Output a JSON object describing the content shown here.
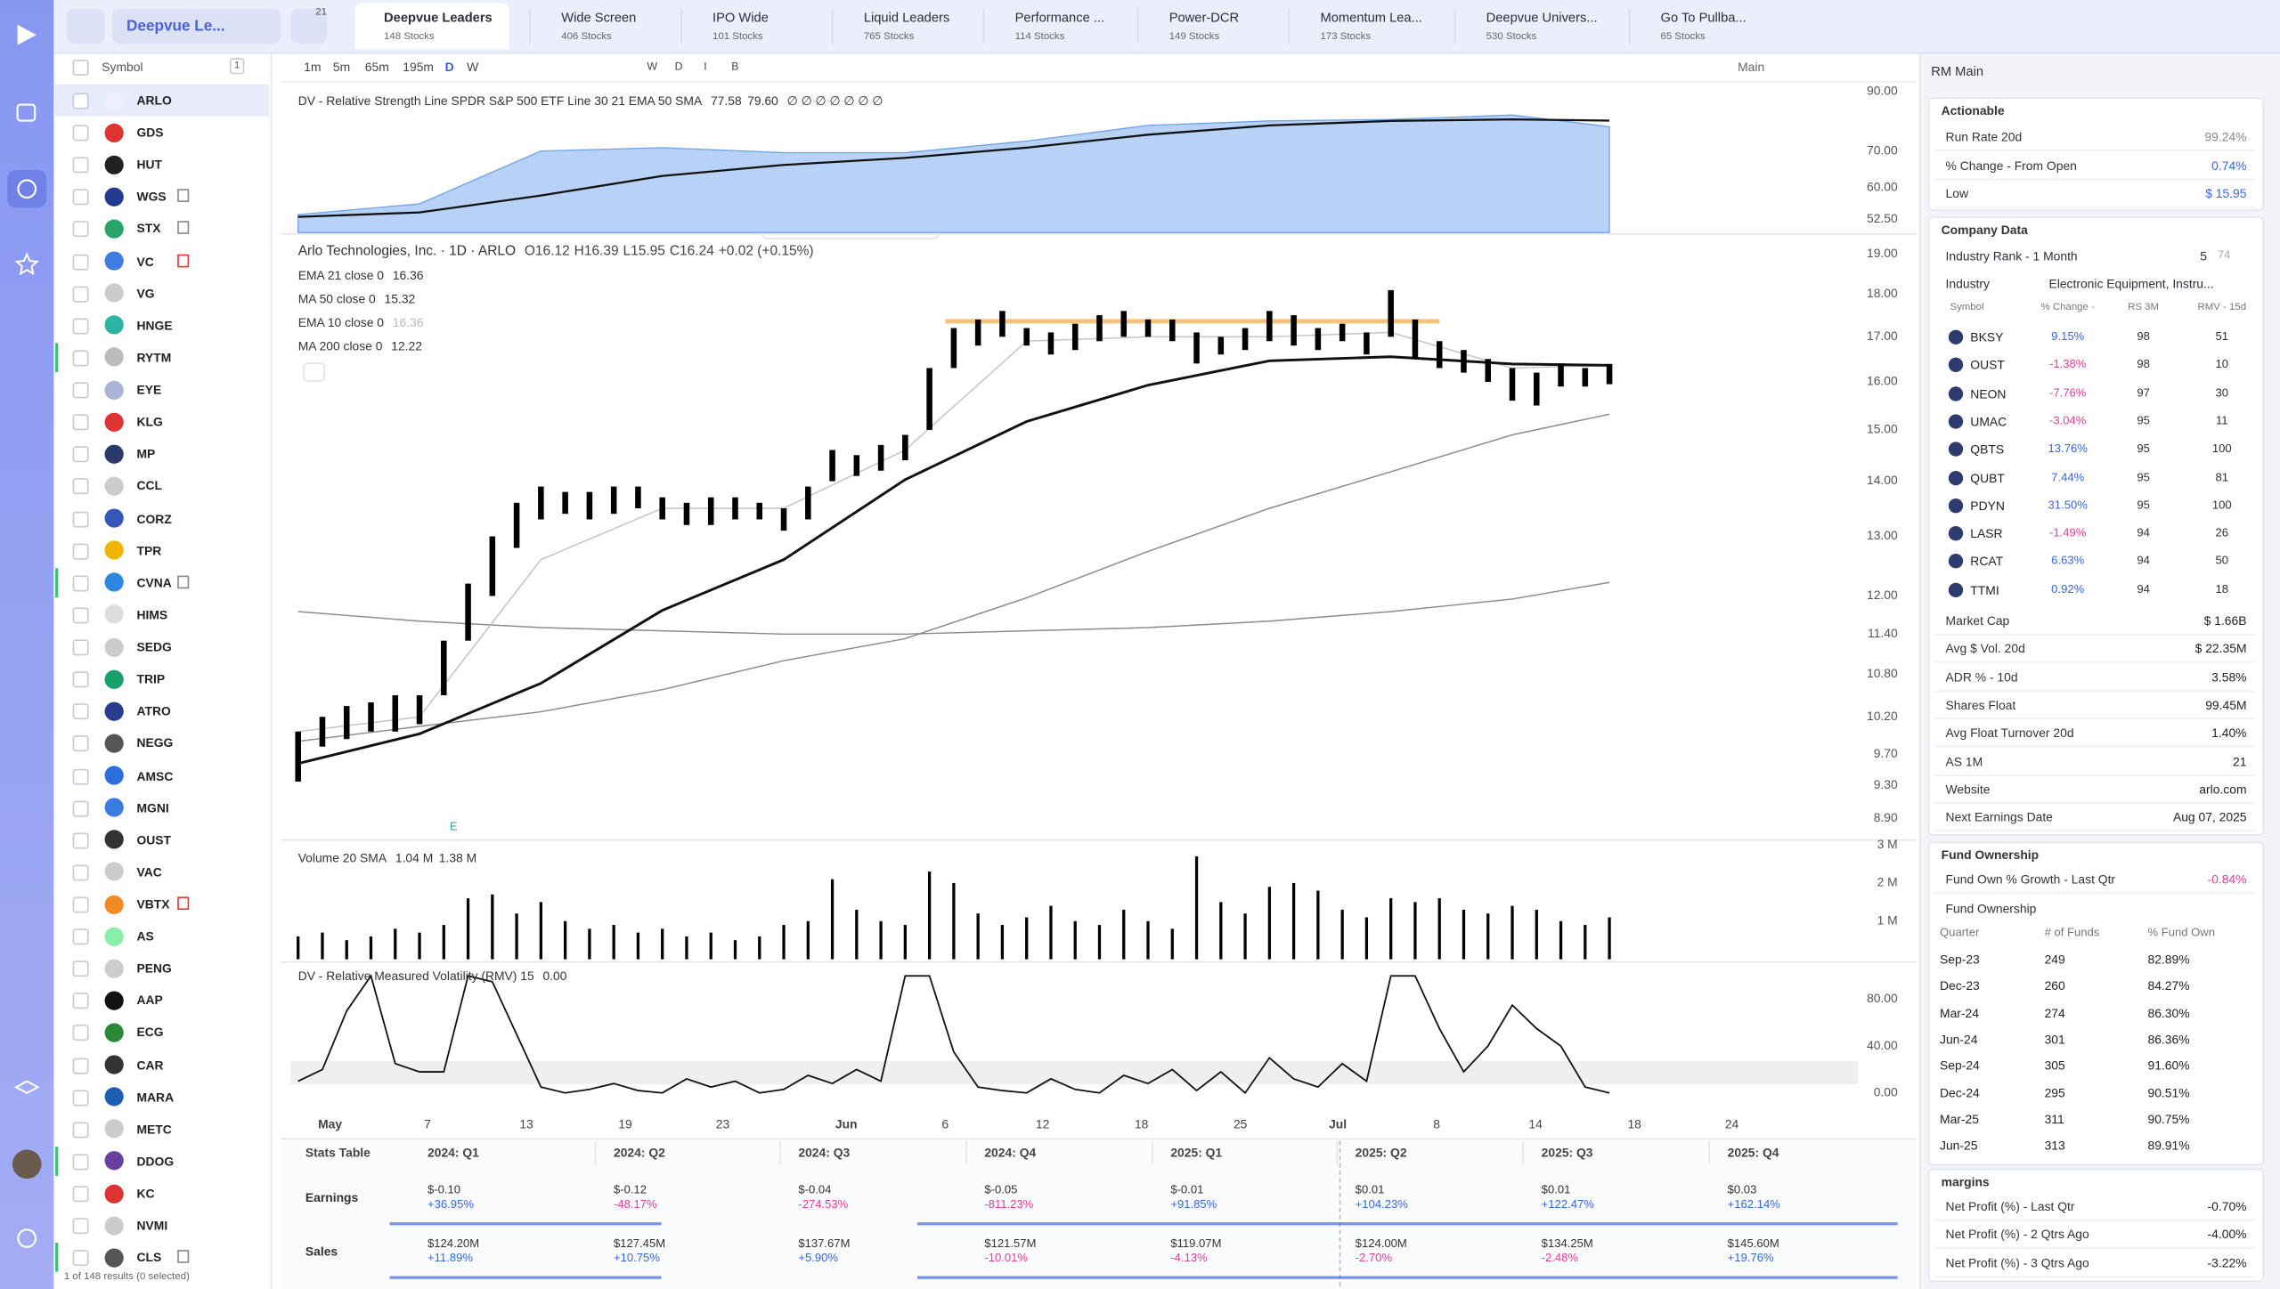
{
  "topbar": {
    "list_name": "Deepvue Le...",
    "filter_count": "21",
    "tabs": [
      {
        "name": "Deepvue Leaders",
        "count": "148 Stocks"
      },
      {
        "name": "Wide Screen",
        "count": "406 Stocks"
      },
      {
        "name": "IPO Wide",
        "count": "101 Stocks"
      },
      {
        "name": "Liquid Leaders",
        "count": "765 Stocks"
      },
      {
        "name": "Performance ...",
        "count": "114 Stocks"
      },
      {
        "name": "Power-DCR",
        "count": "149 Stocks"
      },
      {
        "name": "Momentum Lea...",
        "count": "173 Stocks"
      },
      {
        "name": "Deepvue Univers...",
        "count": "530 Stocks"
      },
      {
        "name": "Go To Pullba...",
        "count": "65 Stocks"
      }
    ]
  },
  "watchlist": {
    "header": "Symbol",
    "selected_count": "1",
    "symbols": [
      "ARLO",
      "GDS",
      "HUT",
      "WGS",
      "STX",
      "VC",
      "VG",
      "HNGE",
      "RYTM",
      "EYE",
      "KLG",
      "MP",
      "CCL",
      "CORZ",
      "TPR",
      "CVNA",
      "HIMS",
      "SEDG",
      "TRIP",
      "ATRO",
      "NEGG",
      "AMSC",
      "MGNI",
      "OUST",
      "VAC",
      "VBTX",
      "AS",
      "PENG",
      "AAP",
      "ECG",
      "CAR",
      "MARA",
      "METC",
      "DDOG",
      "KC",
      "NVMI",
      "CLS"
    ],
    "footer": "1 of 148 results (0 selected)"
  },
  "toolbar": {
    "intervals": [
      "1m",
      "5m",
      "65m",
      "195m",
      "D",
      "W"
    ],
    "drawing_modes": [
      "W",
      "D",
      "I",
      "B"
    ],
    "layout": "Main"
  },
  "chart": {
    "rs": {
      "title": "DV - Relative Strength Line SPDR S&P 500 ETF Line 30 21 EMA 50 SMA",
      "values_shown": [
        "77.58",
        "79.60"
      ],
      "flags": "∅ ∅ ∅ ∅ ∅ ∅ ∅",
      "axis_labels": [
        "90.00",
        "70.00",
        "60.00",
        "52.50"
      ],
      "ylim": [
        49.6,
        92.8
      ],
      "log_scale": true,
      "line_x": [
        0,
        5,
        10,
        15,
        20,
        25,
        30,
        35,
        40,
        45,
        50,
        54
      ],
      "series": [
        {
          "color": "#b7d2f6",
          "values": [
            53.5,
            56,
            70,
            71,
            69.5,
            69.5,
            73,
            78,
            79.5,
            80,
            81.5,
            77.58
          ]
        },
        {
          "color": "#111111",
          "values": [
            53,
            54,
            58,
            63,
            66,
            68,
            71,
            75,
            78,
            79.5,
            80,
            79.6
          ]
        }
      ]
    },
    "price": {
      "name": "Arlo Technologies, Inc. · 1D · ARLO",
      "ohlc": [
        "O16.12",
        "H16.39",
        "L15.95",
        "C16.24"
      ],
      "change": "+0.02 (+0.15%)",
      "axis_labels": [
        "19.00",
        "18.00",
        "17.00",
        "16.00",
        "15.00",
        "14.00",
        "13.00",
        "12.00",
        "11.40",
        "10.80",
        "10.20",
        "9.70",
        "9.30",
        "8.90"
      ],
      "ylim": [
        8.66,
        19.48
      ],
      "log_scale": true,
      "high": [
        10.0,
        10.2,
        10.35,
        10.4,
        10.5,
        10.5,
        11.3,
        12.2,
        13.0,
        13.6,
        13.9,
        13.8,
        13.8,
        13.9,
        13.9,
        13.7,
        13.6,
        13.7,
        13.7,
        13.6,
        13.5,
        13.9,
        14.6,
        14.5,
        14.7,
        14.9,
        16.3,
        17.2,
        17.4,
        17.6,
        17.2,
        17.1,
        17.3,
        17.5,
        17.6,
        17.4,
        17.4,
        17.1,
        17.0,
        17.2,
        17.6,
        17.5,
        17.2,
        17.3,
        17.1,
        18.1,
        17.4,
        16.9,
        16.7,
        16.5,
        16.3,
        16.2,
        16.4,
        16.3,
        16.39
      ],
      "low": [
        9.35,
        9.8,
        9.9,
        10.0,
        10.0,
        10.1,
        10.5,
        11.3,
        12.0,
        12.8,
        13.3,
        13.4,
        13.3,
        13.4,
        13.5,
        13.3,
        13.2,
        13.2,
        13.3,
        13.3,
        13.1,
        13.3,
        14.0,
        14.1,
        14.2,
        14.4,
        15.0,
        16.3,
        16.8,
        17.0,
        16.8,
        16.6,
        16.7,
        16.9,
        17.0,
        17.0,
        16.9,
        16.4,
        16.6,
        16.7,
        16.9,
        16.8,
        16.7,
        16.9,
        16.6,
        17.0,
        16.5,
        16.3,
        16.2,
        16.0,
        15.6,
        15.5,
        15.9,
        15.9,
        15.95
      ],
      "line_x": [
        0,
        5,
        10,
        15,
        20,
        25,
        30,
        35,
        40,
        45,
        50,
        54
      ],
      "series": [
        {
          "name": "EMA 21 close 0",
          "last": "16.36",
          "color": "#111111",
          "values": [
            9.58,
            9.97,
            10.67,
            11.77,
            12.6,
            14.03,
            15.17,
            15.93,
            16.46,
            16.55,
            16.39,
            16.36
          ]
        },
        {
          "name": "MA 50 close 0",
          "last": "15.32",
          "color": "#8a8a8a",
          "values": [
            9.87,
            10.07,
            10.27,
            10.58,
            11.0,
            11.33,
            11.97,
            12.74,
            13.5,
            14.18,
            14.9,
            15.32
          ]
        },
        {
          "name": "EMA 10 close 0",
          "last": "16.36",
          "color": "#c4c4c4",
          "values": [
            10.0,
            10.2,
            12.6,
            13.5,
            13.5,
            14.6,
            16.9,
            17.0,
            17.0,
            17.1,
            16.3,
            16.36
          ]
        },
        {
          "name": "MA 200 close 0",
          "last": "12.22",
          "color": "#8a8a8a",
          "values": [
            11.75,
            11.6,
            11.5,
            11.45,
            11.4,
            11.4,
            11.45,
            11.5,
            11.6,
            11.75,
            11.95,
            12.22
          ]
        }
      ],
      "earnings_marker": "E"
    },
    "volume": {
      "title": "Volume 20 SMA",
      "values_shown": [
        "1.04 M",
        "1.38 M"
      ],
      "axis_labels": [
        "3 M",
        "2 M",
        "1 M"
      ],
      "ylim": [
        0,
        3.05
      ],
      "values": [
        0.6,
        0.7,
        0.5,
        0.6,
        0.8,
        0.7,
        0.9,
        1.6,
        1.7,
        1.2,
        1.5,
        1.0,
        0.8,
        0.9,
        0.7,
        0.8,
        0.6,
        0.7,
        0.5,
        0.6,
        0.9,
        1.0,
        2.1,
        1.3,
        1.0,
        0.9,
        2.3,
        2.0,
        1.2,
        0.9,
        1.1,
        1.4,
        1.0,
        0.9,
        1.3,
        1.0,
        0.8,
        2.7,
        1.5,
        1.2,
        1.9,
        2.0,
        1.8,
        1.3,
        1.1,
        1.6,
        1.5,
        1.6,
        1.3,
        1.2,
        1.4,
        1.3,
        1.0,
        0.9,
        1.1
      ]
    },
    "rmv": {
      "title": "DV - Relative Measured Volatility (RMV) 15",
      "value_shown": "0.00",
      "axis_labels": [
        "80.00",
        "40.00",
        "0.00"
      ],
      "ylim": [
        -10,
        108
      ],
      "values": [
        10,
        20,
        70,
        100,
        25,
        18,
        18,
        100,
        95,
        50,
        5,
        0,
        3,
        8,
        2,
        0,
        12,
        5,
        10,
        0,
        3,
        15,
        8,
        20,
        10,
        100,
        100,
        35,
        5,
        2,
        0,
        12,
        3,
        0,
        15,
        8,
        20,
        2,
        18,
        0,
        30,
        12,
        5,
        25,
        10,
        100,
        100,
        55,
        18,
        40,
        75,
        55,
        40,
        5,
        0
      ]
    },
    "x_labels": [
      "May",
      "7",
      "13",
      "19",
      "23",
      "Jun",
      "6",
      "12",
      "18",
      "25",
      "Jul",
      "8",
      "14",
      "18",
      "24"
    ]
  },
  "stats_table": {
    "title": "Stats Table",
    "columns": [
      "2024: Q1",
      "2024: Q2",
      "2024: Q3",
      "2024: Q4",
      "2025: Q1",
      "2025: Q2",
      "2025: Q3",
      "2025: Q4"
    ],
    "rows": [
      {
        "name": "Earnings",
        "cells": [
          [
            "$-0.10",
            "+36.95%"
          ],
          [
            "$-0.12",
            "-48.17%"
          ],
          [
            "$-0.04",
            "-274.53%"
          ],
          [
            "$-0.05",
            "-811.23%"
          ],
          [
            "$-0.01",
            "+91.85%"
          ],
          [
            "$0.01",
            "+104.23%"
          ],
          [
            "$0.01",
            "+122.47%"
          ],
          [
            "$0.03",
            "+162.14%"
          ]
        ]
      },
      {
        "name": "Sales",
        "cells": [
          [
            "$124.20M",
            "+11.89%"
          ],
          [
            "$127.45M",
            "+10.75%"
          ],
          [
            "$137.67M",
            "+5.90%"
          ],
          [
            "$121.57M",
            "-10.01%"
          ],
          [
            "$119.07M",
            "-4.13%"
          ],
          [
            "$124.00M",
            "-2.70%"
          ],
          [
            "$134.25M",
            "-2.48%"
          ],
          [
            "$145.60M",
            "+19.76%"
          ]
        ]
      }
    ]
  },
  "right_panel": {
    "title": "RM Main",
    "actionable": {
      "title": "Actionable",
      "rows": [
        [
          "Run Rate 20d",
          "99.24%"
        ],
        [
          "% Change - From Open",
          "0.74%"
        ],
        [
          "Low",
          "$ 15.95"
        ]
      ]
    },
    "company_data": {
      "title": "Company Data",
      "industry_rank": {
        "label": "Industry Rank - 1 Month",
        "value": "5",
        "of": "74"
      },
      "industry": {
        "label": "Industry",
        "value": "Electronic Equipment, Instru..."
      },
      "peers": {
        "columns": [
          "Symbol",
          "% Change -",
          "RS 3M",
          "RMV - 15d"
        ],
        "rows": [
          [
            "BKSY",
            "9.15%",
            "98",
            "51"
          ],
          [
            "OUST",
            "-1.38%",
            "98",
            "10"
          ],
          [
            "NEON",
            "-7.76%",
            "97",
            "30"
          ],
          [
            "UMAC",
            "-3.04%",
            "95",
            "11"
          ],
          [
            "QBTS",
            "13.76%",
            "95",
            "100"
          ],
          [
            "QUBT",
            "7.44%",
            "95",
            "81"
          ],
          [
            "PDYN",
            "31.50%",
            "95",
            "100"
          ],
          [
            "LASR",
            "-1.49%",
            "94",
            "26"
          ],
          [
            "RCAT",
            "6.63%",
            "94",
            "50"
          ],
          [
            "TTMI",
            "0.92%",
            "94",
            "18"
          ]
        ]
      },
      "rows": [
        [
          "Market Cap",
          "$ 1.66B"
        ],
        [
          "Avg $ Vol. 20d",
          "$ 22.35M"
        ],
        [
          "ADR % - 10d",
          "3.58%"
        ],
        [
          "Shares Float",
          "99.45M"
        ],
        [
          "Avg Float Turnover 20d",
          "1.40%"
        ],
        [
          "AS 1M",
          "21"
        ],
        [
          "Website",
          "arlo.com"
        ],
        [
          "Next Earnings Date",
          "Aug 07, 2025"
        ]
      ]
    },
    "fund_ownership": {
      "title": "Fund Ownership",
      "rows": [
        [
          "Fund Own % Growth - Last Qtr",
          "-0.84%"
        ]
      ],
      "subtitle": "Fund Ownership",
      "table": {
        "columns": [
          "Quarter",
          "# of Funds",
          "% Fund Own"
        ],
        "rows": [
          [
            "Sep-23",
            "249",
            "82.89%"
          ],
          [
            "Dec-23",
            "260",
            "84.27%"
          ],
          [
            "Mar-24",
            "274",
            "86.30%"
          ],
          [
            "Jun-24",
            "301",
            "86.36%"
          ],
          [
            "Sep-24",
            "305",
            "91.60%"
          ],
          [
            "Dec-24",
            "295",
            "90.51%"
          ],
          [
            "Mar-25",
            "311",
            "90.75%"
          ],
          [
            "Jun-25",
            "313",
            "89.91%"
          ]
        ]
      }
    },
    "margins": {
      "title": "margins",
      "rows": [
        [
          "Net Profit (%) - Last Qtr",
          "-0.70%"
        ],
        [
          "Net Profit (%) - 2 Qtrs Ago",
          "-4.00%"
        ],
        [
          "Net Profit (%) - 3 Qtrs Ago",
          "-3.22%"
        ]
      ]
    }
  }
}
